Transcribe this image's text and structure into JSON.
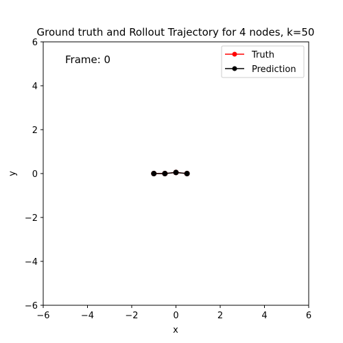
{
  "chart_data": {
    "type": "line",
    "title": "Ground truth and Rollout Trajectory for 4 nodes, k=50",
    "xlabel": "x",
    "ylabel": "y",
    "xlim": [
      -6,
      6
    ],
    "ylim": [
      -6,
      6
    ],
    "xticks": [
      -6,
      -4,
      -2,
      0,
      2,
      4,
      6
    ],
    "yticks": [
      -6,
      -4,
      -2,
      0,
      2,
      4,
      6
    ],
    "xtick_labels": [
      "−6",
      "−4",
      "−2",
      "0",
      "2",
      "4",
      "6"
    ],
    "ytick_labels": [
      "−6",
      "−4",
      "−2",
      "0",
      "2",
      "4",
      "6"
    ],
    "grid": false,
    "legend_position": "top-right",
    "annotation": "Frame: 0",
    "series": [
      {
        "name": "Truth",
        "color": "#ff0000",
        "marker": "circle",
        "x": [
          -1.0,
          -0.5,
          0.0,
          0.5
        ],
        "y": [
          0.0,
          0.0,
          0.05,
          0.0
        ]
      },
      {
        "name": "Prediction",
        "color": "#000000",
        "marker": "circle",
        "x": [
          -1.0,
          -0.5,
          0.0,
          0.5
        ],
        "y": [
          0.0,
          0.0,
          0.05,
          0.0
        ]
      }
    ]
  }
}
